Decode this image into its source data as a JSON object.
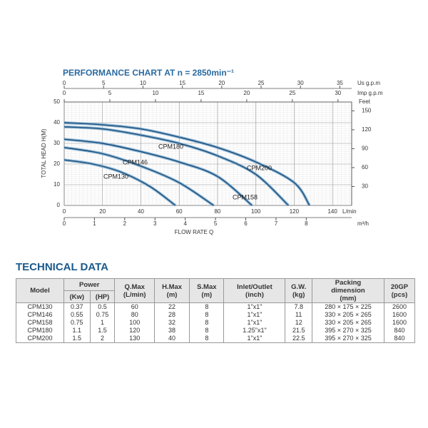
{
  "chart_data": {
    "type": "line",
    "title": "PERFORMANCE CHART AT n = 2850min⁻¹",
    "x_label": "FLOW RATE Q",
    "x_unit": "L/min",
    "y_label": "TOTAL HEAD H(M)",
    "xlim": [
      0,
      150
    ],
    "xticks": [
      0,
      20,
      40,
      60,
      80,
      100,
      120,
      140
    ],
    "ylim": [
      0,
      50
    ],
    "yticks": [
      0,
      10,
      20,
      30,
      40,
      50
    ],
    "grid": true,
    "axes": [
      {
        "unit": "m³/h",
        "position": "bottom",
        "lim": [
          0,
          9.5
        ],
        "ticks": [
          0,
          1,
          2,
          3,
          4,
          5,
          6,
          7,
          8
        ]
      },
      {
        "unit": "Us g.p.m",
        "position": "top",
        "lim": [
          0,
          36.5
        ],
        "ticks": [
          0,
          5,
          10,
          15,
          20,
          25,
          30,
          35
        ]
      },
      {
        "unit": "Imp g.p.m",
        "position": "top",
        "lim": [
          0,
          31.5
        ],
        "ticks": [
          0,
          5,
          10,
          15,
          20,
          25,
          30
        ]
      },
      {
        "unit": "Feet",
        "position": "right",
        "lim": [
          0,
          164
        ],
        "ticks": [
          30,
          60,
          90,
          120,
          150
        ]
      }
    ],
    "series": [
      {
        "name": "CPM130",
        "color": "#1b4d78",
        "x": [
          0,
          15,
          30,
          45,
          58
        ],
        "values": [
          22,
          20,
          16,
          9,
          0
        ]
      },
      {
        "name": "CPM146",
        "color": "#1b4d78",
        "x": [
          0,
          20,
          40,
          60,
          78
        ],
        "values": [
          28,
          25,
          19,
          11,
          0
        ]
      },
      {
        "name": "CPM158",
        "color": "#1b4d78",
        "x": [
          0,
          20,
          40,
          60,
          80,
          98
        ],
        "values": [
          32,
          30,
          26,
          21,
          14,
          0
        ]
      },
      {
        "name": "CPM180",
        "color": "#1b4d78",
        "x": [
          0,
          20,
          40,
          60,
          80,
          100,
          117
        ],
        "values": [
          38,
          37,
          34,
          30,
          24,
          15,
          0
        ]
      },
      {
        "name": "CPM200",
        "color": "#1b4d78",
        "x": [
          0,
          20,
          40,
          60,
          80,
          100,
          120,
          128
        ],
        "values": [
          40,
          39,
          37,
          33,
          28,
          21,
          11,
          0
        ]
      }
    ]
  },
  "technical_data": {
    "title": "TECHNICAL DATA",
    "header": {
      "model": "Model",
      "power": "Power",
      "kw": "(Kw)",
      "hp": "(HP)",
      "qmax": [
        "Q.Max",
        "(L/min)"
      ],
      "hmax": [
        "H.Max",
        "(m)"
      ],
      "smax": [
        "S.Max",
        "(m)"
      ],
      "inlet": [
        "Inlet/Outlet",
        "(inch)"
      ],
      "gw": [
        "G.W.",
        "(kg)"
      ],
      "packing": [
        "Packing",
        "dimension",
        "(mm)"
      ],
      "gp": [
        "20GP",
        "(pcs)"
      ]
    },
    "rows": [
      [
        "CPM130",
        "0.37",
        "0.5",
        "60",
        "22",
        "8",
        "1\"x1\"",
        "7.8",
        "280 × 175 × 225",
        "2600"
      ],
      [
        "CPM146",
        "0.55",
        "0.75",
        "80",
        "28",
        "8",
        "1\"x1\"",
        "11",
        "330 × 205 × 265",
        "1600"
      ],
      [
        "CPM158",
        "0.75",
        "1",
        "100",
        "32",
        "8",
        "1\"x1\"",
        "12",
        "330 × 205 × 265",
        "1600"
      ],
      [
        "CPM180",
        "1.1",
        "1.5",
        "120",
        "38",
        "8",
        "1.25\"x1\"",
        "21.5",
        "395 × 270 × 325",
        "840"
      ],
      [
        "CPM200",
        "1.5",
        "2",
        "130",
        "40",
        "8",
        "1\"x1\"",
        "22.5",
        "395 × 270 × 325",
        "840"
      ]
    ]
  }
}
